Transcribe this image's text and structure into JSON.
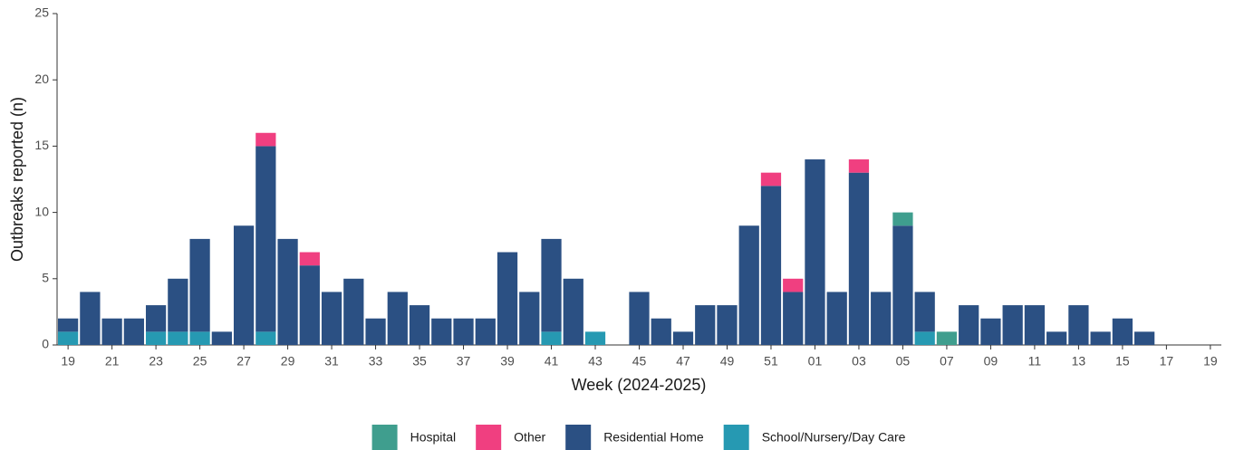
{
  "chart_data": {
    "type": "stacked_bar",
    "x_label": "Week (2024-2025)",
    "y_label": "Outbreaks reported (n)",
    "categories": [
      "19",
      null,
      "21",
      null,
      "23",
      null,
      "25",
      null,
      "27",
      null,
      "29",
      null,
      "31",
      null,
      "33",
      null,
      "35",
      null,
      "37",
      null,
      "39",
      null,
      "41",
      null,
      "43",
      null,
      "45",
      null,
      "47",
      null,
      "49",
      null,
      "51",
      null,
      "01",
      null,
      "03",
      null,
      "05",
      null,
      "07",
      null,
      "09",
      null,
      "11",
      null,
      "13",
      null,
      "15",
      null,
      "17",
      null,
      "19"
    ],
    "series": [
      {
        "name": "Hospital",
        "color": "#3f9e8e",
        "values": [
          0,
          0,
          0,
          0,
          0,
          0,
          0,
          0,
          0,
          0,
          0,
          0,
          0,
          0,
          0,
          0,
          0,
          0,
          0,
          0,
          0,
          0,
          0,
          0,
          0,
          0,
          0,
          0,
          0,
          0,
          0,
          0,
          0,
          0,
          0,
          0,
          0,
          0,
          1,
          0,
          1,
          0,
          0,
          0,
          0,
          0,
          0,
          0,
          0,
          0,
          0,
          0,
          0
        ]
      },
      {
        "name": "Other",
        "color": "#f03f80",
        "values": [
          0,
          0,
          0,
          0,
          0,
          0,
          0,
          0,
          0,
          1,
          0,
          1,
          0,
          0,
          0,
          0,
          0,
          0,
          0,
          0,
          0,
          0,
          0,
          0,
          0,
          0,
          0,
          0,
          0,
          0,
          0,
          0,
          1,
          1,
          0,
          0,
          1,
          0,
          0,
          0,
          0,
          0,
          0,
          0,
          0,
          0,
          0,
          0,
          0,
          0,
          0,
          0,
          0
        ]
      },
      {
        "name": "Residential Home",
        "color": "#2b5083",
        "values": [
          1,
          4,
          2,
          2,
          2,
          4,
          7,
          1,
          9,
          14,
          8,
          6,
          4,
          5,
          2,
          4,
          3,
          2,
          2,
          2,
          7,
          4,
          7,
          5,
          0,
          0,
          4,
          2,
          1,
          3,
          3,
          9,
          12,
          4,
          14,
          4,
          13,
          4,
          9,
          3,
          0,
          3,
          2,
          3,
          3,
          1,
          3,
          1,
          2,
          1,
          0,
          0,
          0
        ]
      },
      {
        "name": "School/Nursery/Day Care",
        "color": "#2699b2",
        "values": [
          1,
          0,
          0,
          0,
          1,
          1,
          1,
          0,
          0,
          1,
          0,
          0,
          0,
          0,
          0,
          0,
          0,
          0,
          0,
          0,
          0,
          0,
          1,
          0,
          1,
          0,
          0,
          0,
          0,
          0,
          0,
          0,
          0,
          0,
          0,
          0,
          0,
          0,
          0,
          1,
          0,
          0,
          0,
          0,
          0,
          0,
          0,
          0,
          0,
          0,
          0,
          0,
          0
        ]
      }
    ],
    "ylim": [
      0,
      25
    ],
    "yticks": [
      0,
      5,
      10,
      15,
      20,
      25
    ],
    "grid": false
  }
}
